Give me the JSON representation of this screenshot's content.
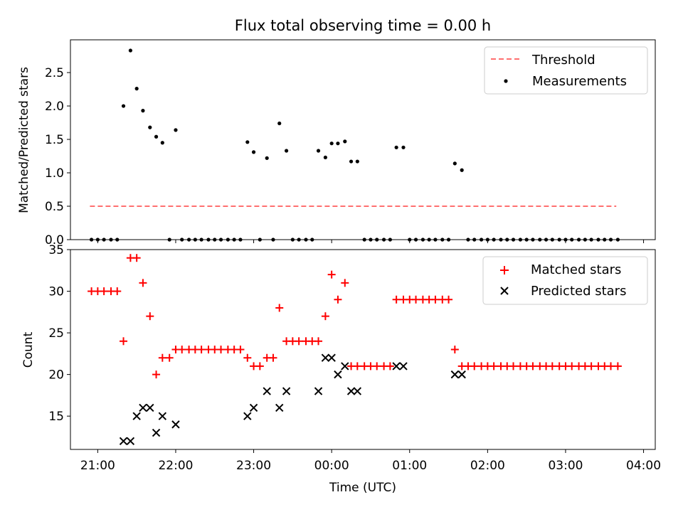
{
  "figure": {
    "title": "Flux total observing time = 0.00 h"
  },
  "chart_data": [
    {
      "type": "scatter",
      "ylabel": "Matched/Predicted stars",
      "xlabel": "",
      "xlim": [
        -0.35,
        7.15
      ],
      "ylim": [
        0,
        2.99
      ],
      "yticks": [
        0.0,
        0.5,
        1.0,
        1.5,
        2.0,
        2.5
      ],
      "ytick_labels": [
        "0.0",
        "0.5",
        "1.0",
        "1.5",
        "2.0",
        "2.5"
      ],
      "legend_position": "top-right",
      "threshold": {
        "name": "Threshold",
        "color": "#ff6f6f",
        "y": 0.5,
        "x": [
          -0.1,
          6.65
        ]
      },
      "series": [
        {
          "name": "Measurements",
          "color": "#000000",
          "points": [
            [
              -0.08,
              0
            ],
            [
              0,
              0
            ],
            [
              0.08,
              0
            ],
            [
              0.17,
              0
            ],
            [
              0.25,
              0
            ],
            [
              0.33,
              2.0
            ],
            [
              0.42,
              2.83
            ],
            [
              0.5,
              2.26
            ],
            [
              0.58,
              1.93
            ],
            [
              0.67,
              1.68
            ],
            [
              0.75,
              1.54
            ],
            [
              0.83,
              1.45
            ],
            [
              0.92,
              0
            ],
            [
              1.0,
              1.64
            ],
            [
              1.08,
              0
            ],
            [
              1.17,
              0
            ],
            [
              1.25,
              0
            ],
            [
              1.33,
              0
            ],
            [
              1.42,
              0
            ],
            [
              1.5,
              0
            ],
            [
              1.58,
              0
            ],
            [
              1.67,
              0
            ],
            [
              1.75,
              0
            ],
            [
              1.83,
              0
            ],
            [
              1.92,
              1.46
            ],
            [
              2.0,
              1.31
            ],
            [
              2.08,
              0
            ],
            [
              2.17,
              1.22
            ],
            [
              2.25,
              0
            ],
            [
              2.33,
              1.74
            ],
            [
              2.42,
              1.33
            ],
            [
              2.5,
              0
            ],
            [
              2.58,
              0
            ],
            [
              2.67,
              0
            ],
            [
              2.75,
              0
            ],
            [
              2.83,
              1.33
            ],
            [
              2.92,
              1.23
            ],
            [
              3.0,
              1.44
            ],
            [
              3.08,
              1.44
            ],
            [
              3.17,
              1.47
            ],
            [
              3.25,
              1.17
            ],
            [
              3.33,
              1.17
            ],
            [
              3.42,
              0
            ],
            [
              3.5,
              0
            ],
            [
              3.58,
              0
            ],
            [
              3.67,
              0
            ],
            [
              3.75,
              0
            ],
            [
              3.83,
              1.38
            ],
            [
              3.92,
              1.38
            ],
            [
              4.0,
              0
            ],
            [
              4.08,
              0
            ],
            [
              4.17,
              0
            ],
            [
              4.25,
              0
            ],
            [
              4.33,
              0
            ],
            [
              4.42,
              0
            ],
            [
              4.5,
              0
            ],
            [
              4.58,
              1.14
            ],
            [
              4.67,
              1.04
            ],
            [
              4.75,
              0
            ],
            [
              4.83,
              0
            ],
            [
              4.92,
              0
            ],
            [
              5.0,
              0
            ],
            [
              5.08,
              0
            ],
            [
              5.17,
              0
            ],
            [
              5.25,
              0
            ],
            [
              5.33,
              0
            ],
            [
              5.42,
              0
            ],
            [
              5.5,
              0
            ],
            [
              5.58,
              0
            ],
            [
              5.67,
              0
            ],
            [
              5.75,
              0
            ],
            [
              5.83,
              0
            ],
            [
              5.92,
              0
            ],
            [
              6.0,
              0
            ],
            [
              6.08,
              0
            ],
            [
              6.17,
              0
            ],
            [
              6.25,
              0
            ],
            [
              6.33,
              0
            ],
            [
              6.42,
              0
            ],
            [
              6.5,
              0
            ],
            [
              6.58,
              0
            ],
            [
              6.67,
              0
            ]
          ]
        }
      ]
    },
    {
      "type": "scatter",
      "ylabel": "Count",
      "xlabel": "Time (UTC)",
      "xlim": [
        -0.35,
        7.15
      ],
      "ylim": [
        11,
        35
      ],
      "yticks": [
        15,
        20,
        25,
        30,
        35
      ],
      "ytick_labels": [
        "15",
        "20",
        "25",
        "30",
        "35"
      ],
      "xticks": [
        0,
        1,
        2,
        3,
        4,
        5,
        6,
        7
      ],
      "xtick_labels": [
        "21:00",
        "22:00",
        "23:00",
        "00:00",
        "01:00",
        "02:00",
        "03:00",
        "04:00"
      ],
      "legend_position": "top-right",
      "series": [
        {
          "name": "Matched stars",
          "color": "#ff0000",
          "marker": "+",
          "points": [
            [
              -0.08,
              30
            ],
            [
              0,
              30
            ],
            [
              0.08,
              30
            ],
            [
              0.17,
              30
            ],
            [
              0.25,
              30
            ],
            [
              0.33,
              24
            ],
            [
              0.42,
              34
            ],
            [
              0.5,
              34
            ],
            [
              0.58,
              31
            ],
            [
              0.67,
              27
            ],
            [
              0.75,
              20
            ],
            [
              0.83,
              22
            ],
            [
              0.92,
              22
            ],
            [
              1.0,
              23
            ],
            [
              1.08,
              23
            ],
            [
              1.17,
              23
            ],
            [
              1.25,
              23
            ],
            [
              1.33,
              23
            ],
            [
              1.42,
              23
            ],
            [
              1.5,
              23
            ],
            [
              1.58,
              23
            ],
            [
              1.67,
              23
            ],
            [
              1.75,
              23
            ],
            [
              1.83,
              23
            ],
            [
              1.92,
              22
            ],
            [
              2.0,
              21
            ],
            [
              2.08,
              21
            ],
            [
              2.17,
              22
            ],
            [
              2.25,
              22
            ],
            [
              2.33,
              28
            ],
            [
              2.42,
              24
            ],
            [
              2.5,
              24
            ],
            [
              2.58,
              24
            ],
            [
              2.67,
              24
            ],
            [
              2.75,
              24
            ],
            [
              2.83,
              24
            ],
            [
              2.92,
              27
            ],
            [
              3.0,
              32
            ],
            [
              3.08,
              29
            ],
            [
              3.17,
              31
            ],
            [
              3.25,
              21
            ],
            [
              3.33,
              21
            ],
            [
              3.42,
              21
            ],
            [
              3.5,
              21
            ],
            [
              3.58,
              21
            ],
            [
              3.67,
              21
            ],
            [
              3.75,
              21
            ],
            [
              3.83,
              29
            ],
            [
              3.92,
              29
            ],
            [
              4.0,
              29
            ],
            [
              4.08,
              29
            ],
            [
              4.17,
              29
            ],
            [
              4.25,
              29
            ],
            [
              4.33,
              29
            ],
            [
              4.42,
              29
            ],
            [
              4.5,
              29
            ],
            [
              4.58,
              23
            ],
            [
              4.67,
              21
            ],
            [
              4.75,
              21
            ],
            [
              4.83,
              21
            ],
            [
              4.92,
              21
            ],
            [
              5.0,
              21
            ],
            [
              5.08,
              21
            ],
            [
              5.17,
              21
            ],
            [
              5.25,
              21
            ],
            [
              5.33,
              21
            ],
            [
              5.42,
              21
            ],
            [
              5.5,
              21
            ],
            [
              5.58,
              21
            ],
            [
              5.67,
              21
            ],
            [
              5.75,
              21
            ],
            [
              5.83,
              21
            ],
            [
              5.92,
              21
            ],
            [
              6.0,
              21
            ],
            [
              6.08,
              21
            ],
            [
              6.17,
              21
            ],
            [
              6.25,
              21
            ],
            [
              6.33,
              21
            ],
            [
              6.42,
              21
            ],
            [
              6.5,
              21
            ],
            [
              6.58,
              21
            ],
            [
              6.67,
              21
            ]
          ]
        },
        {
          "name": "Predicted stars",
          "color": "#000000",
          "marker": "x",
          "points": [
            [
              0.33,
              12
            ],
            [
              0.42,
              12
            ],
            [
              0.5,
              15
            ],
            [
              0.58,
              16
            ],
            [
              0.67,
              16
            ],
            [
              0.75,
              13
            ],
            [
              0.83,
              15
            ],
            [
              1.0,
              14
            ],
            [
              1.92,
              15
            ],
            [
              2.0,
              16
            ],
            [
              2.17,
              18
            ],
            [
              2.33,
              16
            ],
            [
              2.42,
              18
            ],
            [
              2.83,
              18
            ],
            [
              2.92,
              22
            ],
            [
              3.0,
              22
            ],
            [
              3.08,
              20
            ],
            [
              3.17,
              21
            ],
            [
              3.25,
              18
            ],
            [
              3.33,
              18
            ],
            [
              3.83,
              21
            ],
            [
              3.92,
              21
            ],
            [
              4.58,
              20
            ],
            [
              4.67,
              20
            ]
          ]
        }
      ]
    }
  ]
}
